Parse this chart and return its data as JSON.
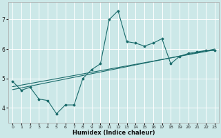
{
  "xlabel": "Humidex (Indice chaleur)",
  "bg_color": "#cce8e8",
  "line_color": "#1a6b6b",
  "grid_color": "#ffffff",
  "xlim": [
    -0.5,
    23.5
  ],
  "ylim": [
    3.5,
    7.6
  ],
  "yticks": [
    4,
    5,
    6,
    7
  ],
  "xticks": [
    0,
    1,
    2,
    3,
    4,
    5,
    6,
    7,
    8,
    9,
    10,
    11,
    12,
    13,
    14,
    15,
    16,
    17,
    18,
    19,
    20,
    21,
    22,
    23
  ],
  "line1_x": [
    0,
    1,
    2,
    3,
    4,
    5,
    6,
    7,
    8,
    9,
    10,
    11,
    12,
    13,
    14,
    15,
    16,
    17,
    18,
    19,
    20,
    21,
    22,
    23
  ],
  "line1_y": [
    4.9,
    4.6,
    4.7,
    4.3,
    4.25,
    3.8,
    4.1,
    4.1,
    5.0,
    5.3,
    5.5,
    7.0,
    7.3,
    6.25,
    6.2,
    6.1,
    6.2,
    6.35,
    5.5,
    5.75,
    5.85,
    5.9,
    5.95,
    5.95
  ],
  "reg1_x0": 0,
  "reg1_y0": 4.72,
  "reg1_x1": 23,
  "reg1_y1": 5.97,
  "reg2_x0": 0,
  "reg2_y0": 4.62,
  "reg2_x1": 23,
  "reg2_y1": 6.0
}
